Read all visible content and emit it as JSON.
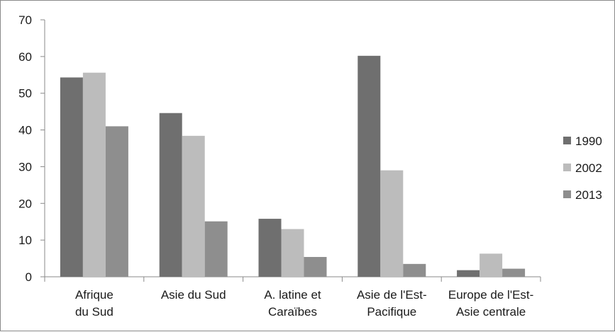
{
  "chart_data": {
    "type": "bar",
    "categories": [
      [
        "Afrique",
        "du Sud"
      ],
      [
        "Asie du Sud"
      ],
      [
        "A. latine et",
        "Caraïbes"
      ],
      [
        "Asie de l'Est-",
        "Pacifique"
      ],
      [
        "Europe de l'Est-",
        "Asie centrale"
      ]
    ],
    "series": [
      {
        "name": "1990",
        "values": [
          54.3,
          44.6,
          15.8,
          60.2,
          1.8
        ],
        "color": "#6f6f6f"
      },
      {
        "name": "2002",
        "values": [
          55.6,
          38.4,
          13.0,
          29.0,
          6.3
        ],
        "color": "#bcbcbc"
      },
      {
        "name": "2013",
        "values": [
          41.0,
          15.1,
          5.4,
          3.5,
          2.2
        ],
        "color": "#8e8e8e"
      }
    ],
    "ylim": [
      0,
      70
    ],
    "yticks": [
      0,
      10,
      20,
      30,
      40,
      50,
      60,
      70
    ],
    "legend_position": "right",
    "grid": false
  }
}
